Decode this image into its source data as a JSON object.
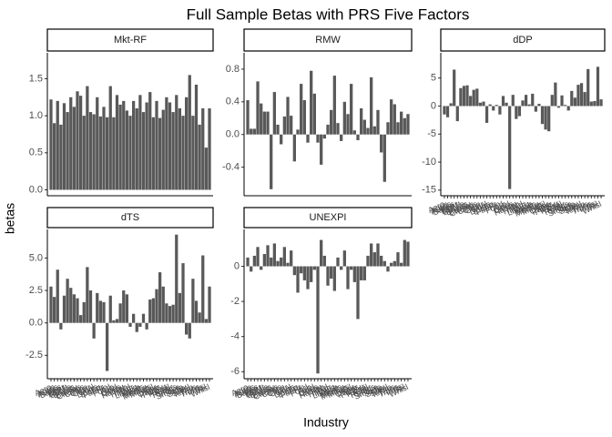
{
  "title": "Full Sample Betas with PRS Five Factors",
  "x_label": "Industry",
  "y_label": "betas",
  "chart_data": [
    {
      "type": "bar",
      "title": "Mkt-RF",
      "color": "#595959",
      "values": [
        1.22,
        0.9,
        1.2,
        0.88,
        1.17,
        1.05,
        1.25,
        1.12,
        1.33,
        1.27,
        1.0,
        1.4,
        1.05,
        1.02,
        1.25,
        0.99,
        1.12,
        0.98,
        1.4,
        0.98,
        1.28,
        1.15,
        1.2,
        1.07,
        1.0,
        1.2,
        1.1,
        1.28,
        1.05,
        1.18,
        1.32,
        0.98,
        1.2,
        0.97,
        1.08,
        1.25,
        1.18,
        1.05,
        1.28,
        1.1,
        1.0,
        1.25,
        1.55,
        1.0,
        1.42,
        0.88,
        1.1,
        0.57,
        1.1
      ],
      "ylim": [
        -0.08,
        1.85
      ],
      "yticks": [
        {
          "value": 0,
          "label": "0.0"
        },
        {
          "value": 0.5,
          "label": "0.5"
        },
        {
          "value": 1,
          "label": "1.0"
        },
        {
          "value": 1.5,
          "label": "1.5"
        }
      ]
    },
    {
      "type": "bar",
      "title": "RMW",
      "color": "#595959",
      "values": [
        0.42,
        0.07,
        0.07,
        0.65,
        0.38,
        0.28,
        0.28,
        -0.67,
        0.52,
        0.12,
        -0.12,
        0.22,
        0.46,
        0.23,
        -0.33,
        0.06,
        0.62,
        0.42,
        -0.1,
        0.78,
        0.5,
        -0.1,
        -0.37,
        -0.05,
        0.12,
        0.3,
        0.72,
        0.14,
        -0.08,
        0.4,
        0.25,
        0.62,
        0.05,
        -0.07,
        0.32,
        0.18,
        0.08,
        0.7,
        0.1,
        0.3,
        -0.22,
        -0.58,
        0.15,
        0.43,
        0.37,
        0.15,
        0.28,
        0.2,
        0.25
      ],
      "ylim": [
        -0.75,
        1.0
      ],
      "yticks": [
        -0.4,
        {
          "value": 0,
          "label": "0.0"
        },
        0.4,
        0.8
      ]
    },
    {
      "type": "bar",
      "title": "dDP",
      "color": "#595959",
      "categories": [
        "Aero",
        "Agric",
        "Autos",
        "Banks",
        "Beer",
        "BldMt",
        "Books",
        "Boxes",
        "BusSv",
        "Chems",
        "Chips",
        "Clths",
        "Cnstr",
        "Coal",
        "Drugs",
        "ElcEq",
        "FabPr",
        "Fin",
        "Food",
        "Fun",
        "Gold",
        "Guns",
        "Hardw",
        "Hlth",
        "Hshld",
        "Insur",
        "LabEq",
        "Mach",
        "Meals",
        "MedEq",
        "Mines",
        "Oil",
        "Other",
        "Paper",
        "PerSv",
        "RlEst",
        "Rtail",
        "Rubbr",
        "Ships",
        "Smoke",
        "Soda",
        "Softw",
        "Steel",
        "Telcm",
        "Toys",
        "Trans",
        "Txtls",
        "Util",
        "Whlsl"
      ],
      "values": [
        -1.5,
        -2,
        0.5,
        6.5,
        -2.7,
        3.2,
        3.6,
        3.7,
        1.8,
        2.9,
        3.1,
        0.6,
        0.8,
        -3,
        0.3,
        -0.8,
        0.2,
        -1.5,
        1.8,
        0.6,
        -14.8,
        2,
        -2.3,
        -1.8,
        1,
        2,
        0.3,
        2.2,
        -1,
        0.4,
        -3.2,
        -4.2,
        -4.5,
        2,
        4.2,
        -0.3,
        1.9,
        0.2,
        -0.8,
        2.7,
        1.5,
        3.8,
        4.1,
        2.5,
        6.6,
        0.8,
        0.9,
        7,
        1.2
      ],
      "ylim": [
        -16,
        9.5
      ],
      "yticks": [
        -15,
        -10,
        -5,
        0,
        5
      ]
    },
    {
      "type": "bar",
      "title": "dTS",
      "color": "#595959",
      "categories": [
        "Aero",
        "Agric",
        "Autos",
        "Banks",
        "Beer",
        "BldMt",
        "Books",
        "Boxes",
        "BusSv",
        "Chems",
        "Chips",
        "Clths",
        "Cnstr",
        "Coal",
        "Drugs",
        "ElcEq",
        "FabPr",
        "Fin",
        "Food",
        "Fun",
        "Gold",
        "Guns",
        "Hardw",
        "Hlth",
        "Hshld",
        "Insur",
        "LabEq",
        "Mach",
        "Meals",
        "MedEq",
        "Mines",
        "Oil",
        "Other",
        "Paper",
        "PerSv",
        "RlEst",
        "Rtail",
        "Rubbr",
        "Ships",
        "Smoke",
        "Soda",
        "Softw",
        "Steel",
        "Telcm",
        "Toys",
        "Trans",
        "Txtls",
        "Util",
        "Whlsl"
      ],
      "values": [
        2.8,
        2,
        4.1,
        -0.5,
        2.1,
        3.4,
        2.7,
        2.2,
        1.9,
        0.6,
        1.6,
        4.3,
        2.5,
        -1.2,
        2.3,
        1.7,
        1.6,
        -3.7,
        2.1,
        0.2,
        0.3,
        1.5,
        2.5,
        2.2,
        -0.3,
        0.7,
        -0.7,
        -0.3,
        0.7,
        -0.5,
        1.8,
        1.9,
        2.6,
        3.9,
        2.8,
        1.5,
        1.3,
        1.4,
        6.8,
        2.3,
        4.6,
        -0.9,
        -1.2,
        3.4,
        1.7,
        0.8,
        5.2,
        0.3,
        2.8
      ],
      "ylim": [
        -4.3,
        7.2
      ],
      "yticks": [
        -2.5,
        {
          "value": 0,
          "label": "0.0"
        },
        2.5,
        {
          "value": 5,
          "label": "5.0"
        }
      ]
    },
    {
      "type": "bar",
      "title": "UNEXPI",
      "color": "#595959",
      "categories": [
        "Aero",
        "Agric",
        "Autos",
        "Banks",
        "Beer",
        "BldMt",
        "Books",
        "Boxes",
        "BusSv",
        "Chems",
        "Chips",
        "Clths",
        "Cnstr",
        "Coal",
        "Drugs",
        "ElcEq",
        "FabPr",
        "Fin",
        "Food",
        "Fun",
        "Gold",
        "Guns",
        "Hardw",
        "Hlth",
        "Hshld",
        "Insur",
        "LabEq",
        "Mach",
        "Meals",
        "MedEq",
        "Mines",
        "Oil",
        "Other",
        "Paper",
        "PerSv",
        "RlEst",
        "Rtail",
        "Rubbr",
        "Ships",
        "Smoke",
        "Soda",
        "Softw",
        "Steel",
        "Telcm",
        "Toys",
        "Trans",
        "Txtls",
        "Util",
        "Whlsl"
      ],
      "values": [
        0.5,
        -0.3,
        0.6,
        1.1,
        -0.2,
        0.7,
        1.2,
        0.5,
        1.3,
        0.3,
        0.5,
        1.1,
        0.2,
        0.9,
        -0.5,
        -1.5,
        -0.4,
        -0.8,
        -1.3,
        -0.9,
        -0.2,
        -6.1,
        1.5,
        0.6,
        -1.1,
        -0.7,
        -1.4,
        0.5,
        -0.2,
        0.9,
        -1.3,
        -0.2,
        -0.9,
        -3,
        -0.8,
        -0.8,
        0.6,
        1.3,
        0.8,
        1.3,
        0.6,
        0.3,
        -0.3,
        0.2,
        0.3,
        0.8,
        0.2,
        1.5,
        1.4
      ],
      "ylim": [
        -6.4,
        2.1
      ],
      "yticks": [
        -6,
        -4,
        -2,
        0
      ]
    }
  ]
}
